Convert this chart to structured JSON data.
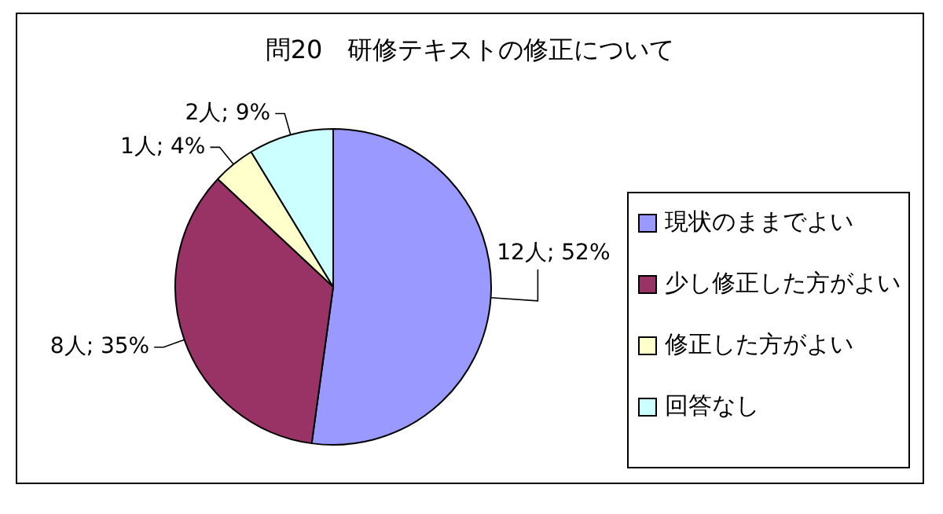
{
  "chart_data": {
    "type": "pie",
    "title": "問20　研修テキストの修正について",
    "categories": [
      "現状のままでよい",
      "少し修正した方がよい",
      "修正した方がよい",
      "回答なし"
    ],
    "values": [
      12,
      8,
      1,
      2
    ],
    "value_labels": [
      "12人; 52%",
      "8人; 35%",
      "1人; 4%",
      "2人; 9%"
    ],
    "colors": [
      "#9999ff",
      "#993366",
      "#ffffcc",
      "#ccffff"
    ],
    "legend": "right"
  }
}
